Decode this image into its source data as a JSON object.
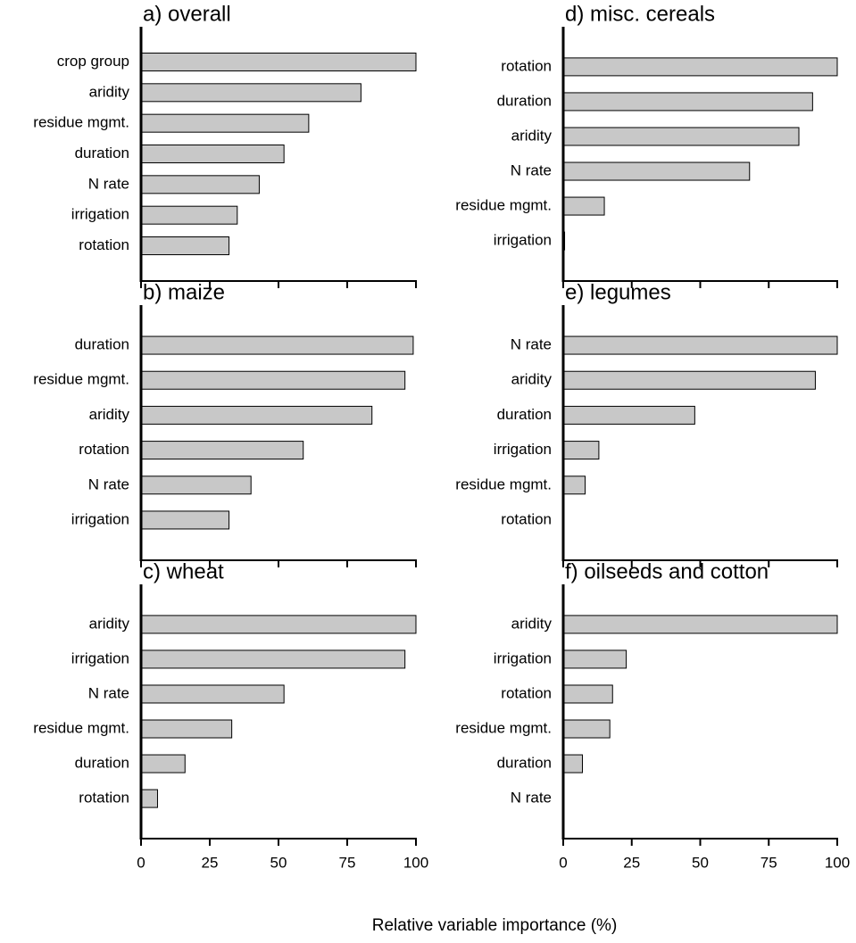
{
  "chart_data": [
    {
      "type": "bar",
      "orientation": "horizontal",
      "title": "a) overall",
      "color": "#c8c8c8",
      "categories": [
        "crop group",
        "aridity",
        "residue mgmt.",
        "duration",
        "N rate",
        "irrigation",
        "rotation"
      ],
      "values": [
        100,
        80,
        61,
        52,
        43,
        35,
        32
      ],
      "xlim": [
        0,
        100
      ],
      "xticks": [
        0,
        25,
        50,
        75,
        100
      ]
    },
    {
      "type": "bar",
      "orientation": "horizontal",
      "title": "b) maize",
      "color": "#c8c8c8",
      "categories": [
        "duration",
        "residue mgmt.",
        "aridity",
        "rotation",
        "N rate",
        "irrigation"
      ],
      "values": [
        99,
        96,
        84,
        59,
        40,
        32
      ],
      "xlim": [
        0,
        100
      ],
      "xticks": [
        0,
        25,
        50,
        75,
        100
      ]
    },
    {
      "type": "bar",
      "orientation": "horizontal",
      "title": "c) wheat",
      "color": "#c8c8c8",
      "categories": [
        "aridity",
        "irrigation",
        "N rate",
        "residue mgmt.",
        "duration",
        "rotation"
      ],
      "values": [
        100,
        96,
        52,
        33,
        16,
        6
      ],
      "xlim": [
        0,
        100
      ],
      "xticks": [
        0,
        25,
        50,
        75,
        100
      ]
    },
    {
      "type": "bar",
      "orientation": "horizontal",
      "title": "d) misc. cereals",
      "color": "#c8c8c8",
      "categories": [
        "rotation",
        "duration",
        "aridity",
        "N rate",
        "residue mgmt.",
        "irrigation"
      ],
      "values": [
        100,
        91,
        86,
        68,
        15,
        0.5
      ],
      "xlim": [
        0,
        100
      ],
      "xticks": [
        0,
        25,
        50,
        75,
        100
      ]
    },
    {
      "type": "bar",
      "orientation": "horizontal",
      "title": "e) legumes",
      "color": "#c8c8c8",
      "categories": [
        "N rate",
        "aridity",
        "duration",
        "irrigation",
        "residue mgmt.",
        "rotation"
      ],
      "values": [
        100,
        92,
        48,
        13,
        8,
        0
      ],
      "xlim": [
        0,
        100
      ],
      "xticks": [
        0,
        25,
        50,
        75,
        100
      ]
    },
    {
      "type": "bar",
      "orientation": "horizontal",
      "title": "f) oilseeds and cotton",
      "color": "#c8c8c8",
      "categories": [
        "aridity",
        "irrigation",
        "rotation",
        "residue mgmt.",
        "duration",
        "N rate"
      ],
      "values": [
        100,
        23,
        18,
        17,
        7,
        0
      ],
      "xlim": [
        0,
        100
      ],
      "xticks": [
        0,
        25,
        50,
        75,
        100
      ]
    }
  ],
  "xlabel": "Relative variable importance (%)"
}
